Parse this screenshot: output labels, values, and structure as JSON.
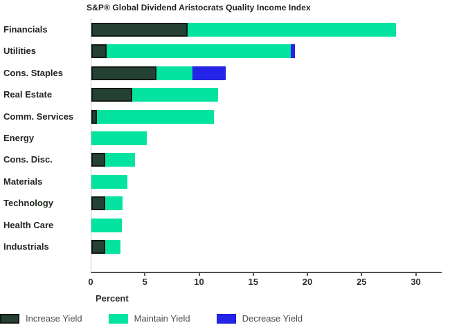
{
  "title": "S&P® Global Dividend Aristocrats Quality Income Index",
  "chart_data": {
    "type": "bar",
    "orientation": "horizontal",
    "stacked": true,
    "title": "S&P® Global Dividend Aristocrats Quality Income Index",
    "xlabel": "Percent",
    "ylabel": "",
    "grid": false,
    "legend_position": "bottom",
    "x_ticks": [
      0,
      5,
      10,
      15,
      20,
      25,
      30
    ],
    "xlim": [
      0,
      32.2
    ],
    "categories": [
      "Financials",
      "Utilities",
      "Cons. Staples",
      "Real Estate",
      "Comm. Services",
      "Energy",
      "Cons. Disc.",
      "Materials",
      "Technology",
      "Health Care",
      "Industrials"
    ],
    "series": [
      {
        "name": "Increase Yield",
        "color": "#254034",
        "values": [
          8.9,
          1.4,
          6.0,
          3.8,
          0.5,
          0,
          1.3,
          0,
          1.3,
          0,
          1.3
        ]
      },
      {
        "name": "Maintain Yield",
        "color": "#04E3A0",
        "values": [
          19.2,
          17.0,
          3.3,
          7.9,
          10.8,
          5.1,
          2.7,
          3.3,
          1.6,
          2.8,
          1.4
        ]
      },
      {
        "name": "Decrease Yield",
        "color": "#2424E8",
        "values": [
          0,
          0.4,
          3.1,
          0,
          0,
          0,
          0,
          0,
          0,
          0,
          0
        ]
      }
    ]
  },
  "legend": {
    "items": [
      "Increase Yield",
      "Maintain Yield",
      "Decrease Yield"
    ]
  }
}
